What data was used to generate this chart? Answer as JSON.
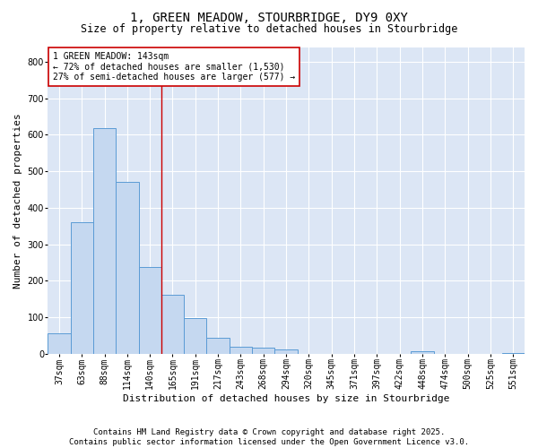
{
  "title_line1": "1, GREEN MEADOW, STOURBRIDGE, DY9 0XY",
  "title_line2": "Size of property relative to detached houses in Stourbridge",
  "xlabel": "Distribution of detached houses by size in Stourbridge",
  "ylabel": "Number of detached properties",
  "bar_labels": [
    "37sqm",
    "63sqm",
    "88sqm",
    "114sqm",
    "140sqm",
    "165sqm",
    "191sqm",
    "217sqm",
    "243sqm",
    "268sqm",
    "294sqm",
    "320sqm",
    "345sqm",
    "371sqm",
    "397sqm",
    "422sqm",
    "448sqm",
    "474sqm",
    "500sqm",
    "525sqm",
    "551sqm"
  ],
  "bar_values": [
    57,
    360,
    618,
    472,
    238,
    162,
    98,
    45,
    20,
    18,
    13,
    0,
    0,
    0,
    0,
    0,
    8,
    0,
    0,
    0,
    3
  ],
  "bar_color": "#c5d8f0",
  "bar_edge_color": "#5b9bd5",
  "ylim": [
    0,
    840
  ],
  "yticks": [
    0,
    100,
    200,
    300,
    400,
    500,
    600,
    700,
    800
  ],
  "vline_x": 4.5,
  "vline_color": "#cc0000",
  "annotation_title": "1 GREEN MEADOW: 143sqm",
  "annotation_line2": "← 72% of detached houses are smaller (1,530)",
  "annotation_line3": "27% of semi-detached houses are larger (577) →",
  "annotation_box_color": "#cc0000",
  "annotation_fill": "white",
  "footer_line1": "Contains HM Land Registry data © Crown copyright and database right 2025.",
  "footer_line2": "Contains public sector information licensed under the Open Government Licence v3.0.",
  "fig_bg_color": "#ffffff",
  "plot_bg_color": "#dce6f5",
  "grid_color": "#ffffff",
  "title_fontsize": 10,
  "subtitle_fontsize": 8.5,
  "axis_label_fontsize": 8,
  "tick_fontsize": 7,
  "annotation_fontsize": 7,
  "footer_fontsize": 6.5
}
